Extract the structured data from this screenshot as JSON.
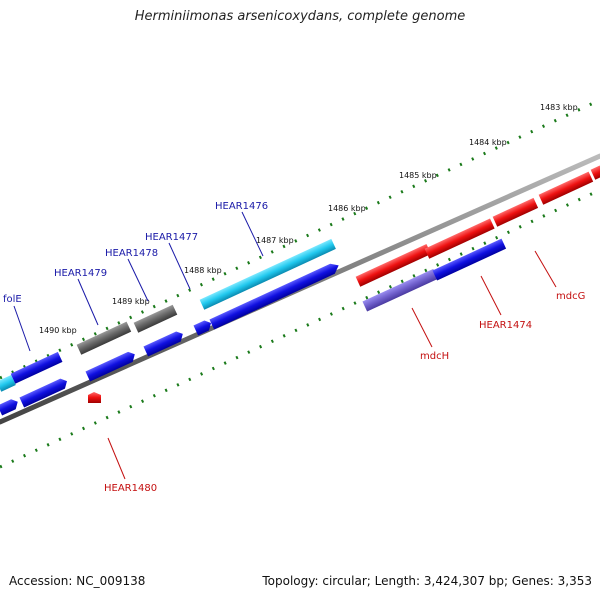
{
  "title": "Herminiimonas arsenicoxydans, complete genome",
  "footer": {
    "accession": "Accession: NC_009138",
    "topology": "Topology: circular; Length: 3,424,307 bp; Genes: 3,353"
  },
  "kbp_ticks": [
    "1483 kbp",
    "1484 kbp",
    "1485 kbp",
    "1486 kbp",
    "1487 kbp",
    "1488 kbp",
    "1489 kbp",
    "1490 kbp"
  ],
  "gene_labels": [
    {
      "text": "HEAR1476",
      "strand": "forward"
    },
    {
      "text": "HEAR1477",
      "strand": "forward"
    },
    {
      "text": "HEAR1478",
      "strand": "forward"
    },
    {
      "text": "HEAR1479",
      "strand": "forward"
    },
    {
      "text": "folE",
      "strand": "forward"
    },
    {
      "text": "HEAR1480",
      "strand": "reverse"
    },
    {
      "text": "mdcH",
      "strand": "reverse"
    },
    {
      "text": "HEAR1474",
      "strand": "reverse"
    },
    {
      "text": "mdcG",
      "strand": "reverse"
    }
  ],
  "colors": {
    "backbone": "#7a7a7a",
    "tick": "#1a7a1a",
    "cds_blue": "#1010e0",
    "cds_cyan": "#20c8ee",
    "cds_gray": "#666666",
    "cds_red": "#ee1111",
    "cds_violet": "#7060cc",
    "label_blue": "#1a1aa8",
    "label_red": "#c41010"
  }
}
